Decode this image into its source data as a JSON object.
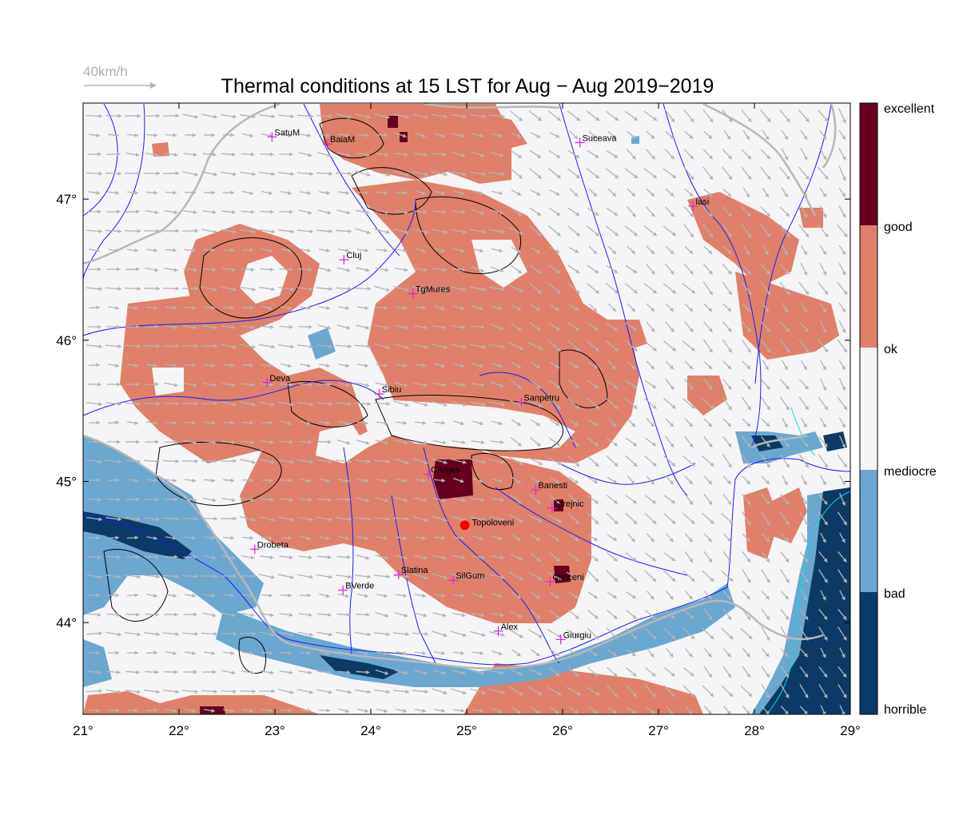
{
  "title": "Thermal conditions at 15 LST for Aug − Aug  2019−2019",
  "wind_reference": "40km/h",
  "colors": {
    "excellent": "#67001f",
    "good": "#e0806a",
    "ok": "#f5f5f7",
    "mediocre": "#6ba8d0",
    "bad": "#0b3a66",
    "river": "#1a1aff",
    "border": "#b8b8b8",
    "contour": "#000000",
    "city": "#e020e0",
    "marker": "#ff0000",
    "arrow": "#b4b4b4"
  },
  "map": {
    "lon_range": [
      21,
      29
    ],
    "lat_range": [
      43.35,
      47.68
    ],
    "lon_ticks": [
      {
        "v": 21,
        "label": "21°"
      },
      {
        "v": 22,
        "label": "22°"
      },
      {
        "v": 23,
        "label": "23°"
      },
      {
        "v": 24,
        "label": "24°"
      },
      {
        "v": 25,
        "label": "25°"
      },
      {
        "v": 26,
        "label": "26°"
      },
      {
        "v": 27,
        "label": "27°"
      },
      {
        "v": 28,
        "label": "28°"
      },
      {
        "v": 29,
        "label": "29°"
      }
    ],
    "lat_ticks": [
      {
        "v": 44,
        "label": "44°"
      },
      {
        "v": 45,
        "label": "45°"
      },
      {
        "v": 46,
        "label": "46°"
      },
      {
        "v": 47,
        "label": "47°"
      }
    ]
  },
  "legend": {
    "levels": [
      "excellent",
      "good",
      "ok",
      "mediocre",
      "bad",
      "horrible"
    ]
  },
  "marker": {
    "name": "Topoloveni",
    "lon": 24.98,
    "lat": 44.69
  },
  "cities": [
    {
      "name": "SatuM",
      "lon": 22.97,
      "lat": 47.44
    },
    {
      "name": "BaiaM",
      "lon": 23.55,
      "lat": 47.39
    },
    {
      "name": "Suceava",
      "lon": 26.18,
      "lat": 47.4
    },
    {
      "name": "Iasi",
      "lon": 27.36,
      "lat": 46.95
    },
    {
      "name": "Cluj",
      "lon": 23.72,
      "lat": 46.57
    },
    {
      "name": "TgMures",
      "lon": 24.44,
      "lat": 46.33
    },
    {
      "name": "Deva",
      "lon": 22.92,
      "lat": 45.7
    },
    {
      "name": "Sibiu",
      "lon": 24.09,
      "lat": 45.62
    },
    {
      "name": "Sanpetru",
      "lon": 25.57,
      "lat": 45.56
    },
    {
      "name": "CArges",
      "lon": 24.6,
      "lat": 45.05
    },
    {
      "name": "Banesti",
      "lon": 25.72,
      "lat": 44.94
    },
    {
      "name": "Strejnic",
      "lon": 25.89,
      "lat": 44.81
    },
    {
      "name": "Drobeta",
      "lon": 22.79,
      "lat": 44.52
    },
    {
      "name": "Slatina",
      "lon": 24.29,
      "lat": 44.34
    },
    {
      "name": "SilGum",
      "lon": 24.86,
      "lat": 44.3
    },
    {
      "name": "Clinceni",
      "lon": 25.87,
      "lat": 44.29
    },
    {
      "name": "BVerde",
      "lon": 23.71,
      "lat": 44.23
    },
    {
      "name": "Alex",
      "lon": 25.33,
      "lat": 43.94
    },
    {
      "name": "Giurgiu",
      "lon": 25.98,
      "lat": 43.88
    }
  ]
}
